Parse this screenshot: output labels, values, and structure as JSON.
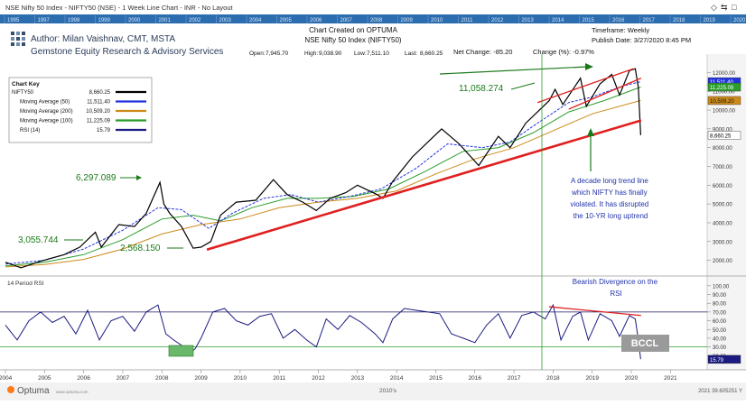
{
  "window": {
    "title": "NSE Nifty 50 Index - NIFTY50 (NSE) - 1 Week Line Chart - INR - No Layout",
    "top_controls": [
      "◇",
      "⇆",
      "□"
    ]
  },
  "overview_years": [
    "1995",
    "1997",
    "1998",
    "1999",
    "2000",
    "2001",
    "2002",
    "2003",
    "2004",
    "2005",
    "2006",
    "2007",
    "2008",
    "2009",
    "2010",
    "2011",
    "2012",
    "2013",
    "2014",
    "2015",
    "2016",
    "2017",
    "2018",
    "2019",
    "2020"
  ],
  "header": {
    "created_on": "Chart Created on OPTUMA",
    "symbol": "NSE Nifty 50 Index (NIFTY50)",
    "author": "Author: Milan Vaishnav, CMT, MSTA",
    "company": "Gemstone Equity Research & Advisory Services",
    "timeframe": "Timeframe: Weekly",
    "publish_date": "Publish Date: 3/27/2020 8:45 PM",
    "net_change": "Net Change: -85.20",
    "change_pct": "Change (%): -0.97%"
  },
  "ohlc": [
    {
      "label": "Open:",
      "value": "7,945.70"
    },
    {
      "label": "High:",
      "value": "9,038.90"
    },
    {
      "label": "Low:",
      "value": "7,511.10"
    },
    {
      "label": "Last:",
      "value": "8,660.25"
    }
  ],
  "chart_key": {
    "title": "Chart Key",
    "items": [
      {
        "name": "NIFTY50",
        "value": "8,660.25",
        "color": "#000000"
      },
      {
        "name": "Moving Average (50)",
        "value": "11,511.40",
        "color": "#2233dd"
      },
      {
        "name": "Moving Average (200)",
        "value": "10,509.20",
        "color": "#cc8a1a"
      },
      {
        "name": "Moving Average (100)",
        "value": "11,225.09",
        "color": "#2a9d2a"
      },
      {
        "name": "RSI (14)",
        "value": "15.79",
        "color": "#1a1a80"
      }
    ]
  },
  "annotations": {
    "peak_2008": "6,297.089",
    "level_2004": "3,055.744",
    "low_2009": "2,568.150",
    "peak_2018": "11,058.274",
    "trendline_note": "A decade long trend line which NIFTY has finally violated. It has disrupted the 10-YR long uptrend",
    "divergence_note": "Bearish Divergence on the RSI",
    "watermark": "BCCL"
  },
  "rsi_panel": {
    "title": "14 Period RSI"
  },
  "footer": {
    "brand": "Optuma",
    "brand_sub": "www.optuma.com",
    "decade_label": "2010's",
    "readout": "2021 39.605251 Y"
  },
  "chart_data": [
    {
      "type": "line",
      "title": "NSE Nifty 50 Index (NIFTY50)",
      "x_ticks": [
        "2004",
        "2005",
        "2006",
        "2007",
        "2008",
        "2009",
        "2010",
        "2011",
        "2012",
        "2013",
        "2014",
        "2015",
        "2016",
        "2017",
        "2018",
        "2019",
        "2020",
        "2021"
      ],
      "y_ticks": [
        "12000.00",
        "11000.00",
        "10000.00",
        "9000.00",
        "8000.00",
        "7000.00",
        "6000.00",
        "5000.00",
        "4000.00",
        "3000.00",
        "2000.00"
      ],
      "ylim": [
        1500,
        12500
      ],
      "series": [
        {
          "name": "NIFTY50",
          "color": "#000000",
          "points": [
            [
              2004.0,
              1900
            ],
            [
              2004.4,
              1600
            ],
            [
              2004.9,
              1950
            ],
            [
              2005.5,
              2300
            ],
            [
              2005.9,
              2700
            ],
            [
              2006.3,
              3500
            ],
            [
              2006.45,
              2700
            ],
            [
              2006.9,
              3900
            ],
            [
              2007.3,
              3800
            ],
            [
              2007.6,
              4500
            ],
            [
              2007.95,
              6150
            ],
            [
              2008.05,
              5000
            ],
            [
              2008.2,
              4500
            ],
            [
              2008.5,
              3800
            ],
            [
              2008.8,
              2650
            ],
            [
              2009.0,
              2700
            ],
            [
              2009.25,
              3000
            ],
            [
              2009.5,
              4400
            ],
            [
              2009.9,
              5100
            ],
            [
              2010.4,
              5200
            ],
            [
              2010.85,
              6300
            ],
            [
              2011.2,
              5500
            ],
            [
              2011.6,
              5100
            ],
            [
              2011.95,
              4650
            ],
            [
              2012.3,
              5300
            ],
            [
              2012.7,
              5600
            ],
            [
              2013.0,
              6000
            ],
            [
              2013.5,
              5500
            ],
            [
              2013.65,
              5300
            ],
            [
              2013.9,
              6200
            ],
            [
              2014.4,
              7500
            ],
            [
              2014.9,
              8500
            ],
            [
              2015.15,
              9000
            ],
            [
              2015.6,
              8200
            ],
            [
              2016.1,
              7050
            ],
            [
              2016.6,
              8600
            ],
            [
              2016.9,
              8000
            ],
            [
              2017.3,
              9300
            ],
            [
              2017.9,
              10500
            ],
            [
              2018.05,
              11100
            ],
            [
              2018.25,
              10300
            ],
            [
              2018.7,
              11700
            ],
            [
              2018.85,
              10200
            ],
            [
              2019.2,
              11400
            ],
            [
              2019.5,
              11900
            ],
            [
              2019.7,
              10800
            ],
            [
              2019.95,
              12100
            ],
            [
              2020.1,
              12200
            ],
            [
              2020.18,
              11200
            ],
            [
              2020.24,
              8660
            ]
          ]
        },
        {
          "name": "Moving Average (50)",
          "color": "#2233dd",
          "points": [
            [
              2004.0,
              1800
            ],
            [
              2005.0,
              2000
            ],
            [
              2006.0,
              2600
            ],
            [
              2007.0,
              3600
            ],
            [
              2007.9,
              4800
            ],
            [
              2008.5,
              4700
            ],
            [
              2009.2,
              3700
            ],
            [
              2009.8,
              4500
            ],
            [
              2010.6,
              5300
            ],
            [
              2011.3,
              5500
            ],
            [
              2012.0,
              5100
            ],
            [
              2012.8,
              5400
            ],
            [
              2013.6,
              5800
            ],
            [
              2014.5,
              6900
            ],
            [
              2015.3,
              8200
            ],
            [
              2016.2,
              8000
            ],
            [
              2016.9,
              8300
            ],
            [
              2017.6,
              9300
            ],
            [
              2018.4,
              10400
            ],
            [
              2019.0,
              10700
            ],
            [
              2019.8,
              11300
            ],
            [
              2020.24,
              11511
            ]
          ]
        },
        {
          "name": "Moving Average (100)",
          "color": "#2a9d2a",
          "points": [
            [
              2004.0,
              1700
            ],
            [
              2005.0,
              1900
            ],
            [
              2006.0,
              2300
            ],
            [
              2007.0,
              3100
            ],
            [
              2008.0,
              4200
            ],
            [
              2008.8,
              4400
            ],
            [
              2009.5,
              4100
            ],
            [
              2010.3,
              4800
            ],
            [
              2011.2,
              5300
            ],
            [
              2012.0,
              5300
            ],
            [
              2012.9,
              5400
            ],
            [
              2013.8,
              5800
            ],
            [
              2014.7,
              6700
            ],
            [
              2015.7,
              7800
            ],
            [
              2016.6,
              8000
            ],
            [
              2017.5,
              8800
            ],
            [
              2018.4,
              9900
            ],
            [
              2019.3,
              10500
            ],
            [
              2020.24,
              11225
            ]
          ]
        },
        {
          "name": "Moving Average (200)",
          "color": "#cc8a1a",
          "points": [
            [
              2004.0,
              1650
            ],
            [
              2005.0,
              1780
            ],
            [
              2006.0,
              2050
            ],
            [
              2007.0,
              2600
            ],
            [
              2008.0,
              3400
            ],
            [
              2009.0,
              3900
            ],
            [
              2010.0,
              4200
            ],
            [
              2011.0,
              4800
            ],
            [
              2012.0,
              5100
            ],
            [
              2013.0,
              5300
            ],
            [
              2014.0,
              5700
            ],
            [
              2015.0,
              6600
            ],
            [
              2016.0,
              7400
            ],
            [
              2017.0,
              8000
            ],
            [
              2018.0,
              8900
            ],
            [
              2019.0,
              9800
            ],
            [
              2020.24,
              10509
            ]
          ]
        }
      ],
      "trendlines": [
        {
          "name": "decade support",
          "color": "#e02020",
          "points": [
            [
              2009.15,
              2568
            ],
            [
              2020.25,
              9450
            ]
          ]
        },
        {
          "name": "channel upper",
          "color": "#e02020",
          "points": [
            [
              2017.6,
              10400
            ],
            [
              2020.05,
              12200
            ]
          ]
        },
        {
          "name": "channel lower",
          "color": "#e02020",
          "points": [
            [
              2018.4,
              10050
            ],
            [
              2020.25,
              11700
            ]
          ]
        }
      ]
    },
    {
      "type": "line",
      "title": "14 Period RSI",
      "y_ticks": [
        "100.00",
        "90.00",
        "80.00",
        "70.00",
        "60.00",
        "50.00",
        "40.00",
        "30.00",
        "20.00"
      ],
      "ylim": [
        10,
        105
      ],
      "reference_lines": [
        70,
        30
      ],
      "series": [
        {
          "name": "RSI (14)",
          "color": "#1a1a80",
          "points": [
            [
              2004.0,
              55
            ],
            [
              2004.3,
              38
            ],
            [
              2004.6,
              60
            ],
            [
              2004.9,
              70
            ],
            [
              2005.2,
              58
            ],
            [
              2005.5,
              65
            ],
            [
              2005.8,
              45
            ],
            [
              2006.1,
              72
            ],
            [
              2006.4,
              38
            ],
            [
              2006.7,
              60
            ],
            [
              2007.0,
              65
            ],
            [
              2007.3,
              48
            ],
            [
              2007.6,
              70
            ],
            [
              2007.9,
              78
            ],
            [
              2008.1,
              45
            ],
            [
              2008.3,
              38
            ],
            [
              2008.5,
              32
            ],
            [
              2008.7,
              22
            ],
            [
              2008.85,
              28
            ],
            [
              2009.0,
              40
            ],
            [
              2009.3,
              70
            ],
            [
              2009.6,
              74
            ],
            [
              2009.9,
              60
            ],
            [
              2010.2,
              55
            ],
            [
              2010.5,
              65
            ],
            [
              2010.8,
              68
            ],
            [
              2011.1,
              40
            ],
            [
              2011.4,
              50
            ],
            [
              2011.7,
              38
            ],
            [
              2011.95,
              30
            ],
            [
              2012.2,
              62
            ],
            [
              2012.5,
              50
            ],
            [
              2012.8,
              66
            ],
            [
              2013.1,
              58
            ],
            [
              2013.45,
              45
            ],
            [
              2013.65,
              35
            ],
            [
              2013.9,
              62
            ],
            [
              2014.2,
              74
            ],
            [
              2014.5,
              72
            ],
            [
              2014.8,
              70
            ],
            [
              2015.1,
              68
            ],
            [
              2015.4,
              45
            ],
            [
              2015.7,
              40
            ],
            [
              2016.0,
              35
            ],
            [
              2016.3,
              55
            ],
            [
              2016.6,
              68
            ],
            [
              2016.9,
              40
            ],
            [
              2017.2,
              66
            ],
            [
              2017.5,
              70
            ],
            [
              2017.8,
              62
            ],
            [
              2018.0,
              78
            ],
            [
              2018.2,
              38
            ],
            [
              2018.5,
              65
            ],
            [
              2018.7,
              70
            ],
            [
              2018.9,
              38
            ],
            [
              2019.2,
              68
            ],
            [
              2019.5,
              60
            ],
            [
              2019.7,
              42
            ],
            [
              2019.95,
              66
            ],
            [
              2020.1,
              62
            ],
            [
              2020.18,
              38
            ],
            [
              2020.24,
              16
            ]
          ]
        }
      ],
      "annotations": [
        {
          "name": "bearish divergence",
          "color": "#e02020",
          "points": [
            [
              2017.9,
              76
            ],
            [
              2020.25,
              66
            ]
          ]
        }
      ]
    }
  ]
}
